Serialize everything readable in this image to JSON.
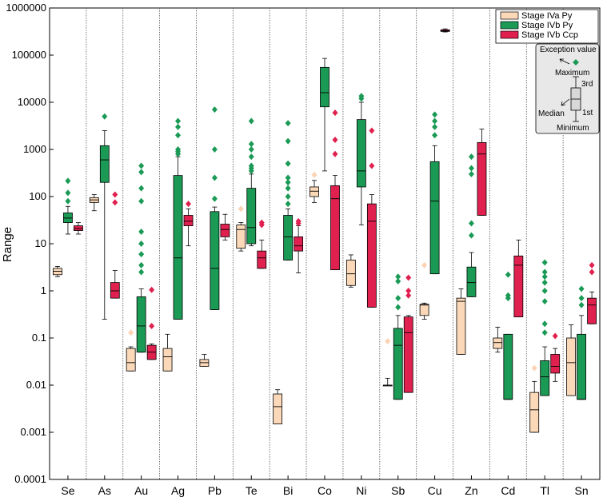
{
  "chart_data": {
    "type": "box",
    "ylabel": "Range",
    "yscale": "log",
    "ylim": [
      0.0001,
      1000000
    ],
    "y_ticks": [
      "0.0001",
      "0.001",
      "0.01",
      "0.1",
      "1",
      "10",
      "100",
      "1000",
      "10000",
      "100000",
      "1000000"
    ],
    "categories": [
      "Se",
      "As",
      "Au",
      "Ag",
      "Pb",
      "Te",
      "Bi",
      "Co",
      "Ni",
      "Sb",
      "Cu",
      "Zn",
      "Cd",
      "Tl",
      "Sn"
    ],
    "series": [
      {
        "name": "Stage IVa Py",
        "color": "#fad8b8",
        "outlier_color": "#fcd3b4",
        "boxes": [
          {
            "category": "Se",
            "min": 2.0,
            "q1": 2.2,
            "median": 2.6,
            "q3": 3.0,
            "max": 3.3,
            "outliers": []
          },
          {
            "category": "As",
            "min": 50,
            "q1": 75,
            "median": 85,
            "q3": 95,
            "max": 110,
            "outliers": []
          },
          {
            "category": "Au",
            "min": 0.02,
            "q1": 0.02,
            "median": 0.03,
            "q3": 0.06,
            "max": 0.065,
            "outliers": [
              0.13
            ]
          },
          {
            "category": "Ag",
            "min": 0.02,
            "q1": 0.02,
            "median": 0.04,
            "q3": 0.06,
            "max": 0.12,
            "outliers": []
          },
          {
            "category": "Pb",
            "min": 0.025,
            "q1": 0.025,
            "median": 0.03,
            "q3": 0.035,
            "max": 0.045,
            "outliers": []
          },
          {
            "category": "Te",
            "min": 7,
            "q1": 8,
            "median": 20,
            "q3": 25,
            "max": 28,
            "outliers": [
              55
            ]
          },
          {
            "category": "Bi",
            "min": 0.0015,
            "q1": 0.0015,
            "median": 0.0035,
            "q3": 0.0065,
            "max": 0.008,
            "outliers": []
          },
          {
            "category": "Co",
            "min": 75,
            "q1": 100,
            "median": 130,
            "q3": 160,
            "max": 220,
            "outliers": [
              290
            ]
          },
          {
            "category": "Ni",
            "min": 1.2,
            "q1": 1.3,
            "median": 2.3,
            "q3": 4.5,
            "max": 5.8,
            "outliers": []
          },
          {
            "category": "Sb",
            "min": 0.01,
            "q1": 0.01,
            "median": 0.01,
            "q3": 0.01,
            "max": 0.014,
            "outliers": [
              0.085
            ]
          },
          {
            "category": "Cu",
            "min": 0.25,
            "q1": 0.3,
            "median": 0.5,
            "q3": 0.52,
            "max": 0.55,
            "outliers": [
              3.5
            ]
          },
          {
            "category": "Zn",
            "min": 0.045,
            "q1": 0.045,
            "median": 0.6,
            "q3": 0.7,
            "max": 1.1,
            "outliers": []
          },
          {
            "category": "Cd",
            "min": 0.05,
            "q1": 0.06,
            "median": 0.08,
            "q3": 0.1,
            "max": 0.17,
            "outliers": []
          },
          {
            "category": "Tl",
            "min": 0.001,
            "q1": 0.001,
            "median": 0.003,
            "q3": 0.007,
            "max": 0.012,
            "outliers": [
              0.023
            ]
          },
          {
            "category": "Sn",
            "min": 0.006,
            "q1": 0.006,
            "median": 0.03,
            "q3": 0.1,
            "max": 0.19,
            "outliers": []
          }
        ]
      },
      {
        "name": "Stage IVb Py",
        "color": "#1a9a55",
        "outlier_color": "#1a9a55",
        "boxes": [
          {
            "category": "Se",
            "min": 16,
            "q1": 28,
            "median": 35,
            "q3": 45,
            "max": 62,
            "outliers": [
              80,
              120,
              215
            ]
          },
          {
            "category": "As",
            "min": 0.25,
            "q1": 200,
            "median": 600,
            "q3": 1200,
            "max": 2500,
            "outliers": [
              5000
            ]
          },
          {
            "category": "Au",
            "min": 0.05,
            "q1": 0.05,
            "median": 0.18,
            "q3": 0.75,
            "max": 1.1,
            "outliers": [
              2.5,
              3.5,
              6,
              10,
              18,
              80,
              150,
              330,
              450
            ]
          },
          {
            "category": "Ag",
            "min": 0.25,
            "q1": 0.25,
            "median": 5,
            "q3": 280,
            "max": 700,
            "outliers": [
              800,
              900,
              1000,
              2000,
              3000,
              4000
            ]
          },
          {
            "category": "Pb",
            "min": 0.4,
            "q1": 0.4,
            "median": 3,
            "q3": 48,
            "max": 60,
            "outliers": [
              90,
              250,
              1000,
              7000
            ]
          },
          {
            "category": "Te",
            "min": 9,
            "q1": 10,
            "median": 22,
            "q3": 150,
            "max": 300,
            "outliers": [
              350,
              400,
              450,
              700,
              1000,
              1300,
              4000
            ]
          },
          {
            "category": "Bi",
            "min": 4.5,
            "q1": 4.5,
            "median": 14,
            "q3": 40,
            "max": 55,
            "outliers": [
              70,
              100,
              150,
              200,
              250,
              500,
              1500,
              3600
            ]
          },
          {
            "category": "Co",
            "min": 350,
            "q1": 8000,
            "median": 16000,
            "q3": 55000,
            "max": 85000,
            "outliers": []
          },
          {
            "category": "Ni",
            "min": 25,
            "q1": 160,
            "median": 350,
            "q3": 4300,
            "max": 10000,
            "outliers": [
              12000,
              13500
            ]
          },
          {
            "category": "Sb",
            "min": 0.005,
            "q1": 0.005,
            "median": 0.07,
            "q3": 0.16,
            "max": 0.3,
            "outliers": [
              0.45,
              0.7,
              1.6,
              2
            ]
          },
          {
            "category": "Cu",
            "min": 2.3,
            "q1": 2.3,
            "median": 80,
            "q3": 550,
            "max": 1200,
            "outliers": [
              2000,
              3000,
              4000,
              5500
            ]
          },
          {
            "category": "Zn",
            "min": 0.75,
            "q1": 0.75,
            "median": 1.5,
            "q3": 3.2,
            "max": 6.5,
            "outliers": [
              15,
              27,
              300,
              400,
              700
            ]
          },
          {
            "category": "Cd",
            "min": 0.005,
            "q1": 0.005,
            "median": 0.005,
            "q3": 0.12,
            "max": 0.12,
            "outliers": [
              0.7,
              0.8,
              2.2
            ]
          },
          {
            "category": "Tl",
            "min": 0.006,
            "q1": 0.006,
            "median": 0.015,
            "q3": 0.033,
            "max": 0.065,
            "outliers": [
              0.13,
              0.2,
              0.6,
              1,
              1.5,
              2,
              2.5,
              4
            ]
          },
          {
            "category": "Sn",
            "min": 0.005,
            "q1": 0.005,
            "median": 0.005,
            "q3": 0.12,
            "max": 0.3,
            "outliers": [
              0.5,
              0.7,
              1.1
            ]
          }
        ]
      },
      {
        "name": "Stage IVb Ccp",
        "color": "#e0204f",
        "outlier_color": "#e0204f",
        "boxes": [
          {
            "category": "Se",
            "min": 16,
            "q1": 19,
            "median": 21,
            "q3": 24,
            "max": 28,
            "outliers": []
          },
          {
            "category": "As",
            "min": 0.7,
            "q1": 0.7,
            "median": 1.0,
            "q3": 1.5,
            "max": 2.7,
            "outliers": [
              75,
              110
            ]
          },
          {
            "category": "Au",
            "min": 0.035,
            "q1": 0.035,
            "median": 0.05,
            "q3": 0.07,
            "max": 0.075,
            "outliers": [
              0.18,
              1.05
            ]
          },
          {
            "category": "Ag",
            "min": 9,
            "q1": 24,
            "median": 30,
            "q3": 40,
            "max": 55,
            "outliers": [
              70
            ]
          },
          {
            "category": "Pb",
            "min": 12,
            "q1": 14,
            "median": 20,
            "q3": 26,
            "max": 42,
            "outliers": []
          },
          {
            "category": "Te",
            "min": 3,
            "q1": 3,
            "median": 5,
            "q3": 7,
            "max": 12,
            "outliers": [
              25,
              28
            ]
          },
          {
            "category": "Bi",
            "min": 2.4,
            "q1": 7,
            "median": 9,
            "q3": 14,
            "max": 24,
            "outliers": [
              27,
              30
            ]
          },
          {
            "category": "Co",
            "min": 2.8,
            "q1": 2.8,
            "median": 90,
            "q3": 170,
            "max": 280,
            "outliers": [
              800,
              1600,
              6000
            ]
          },
          {
            "category": "Ni",
            "min": 0.45,
            "q1": 0.45,
            "median": 30,
            "q3": 70,
            "max": 110,
            "outliers": [
              450,
              2500
            ]
          },
          {
            "category": "Sb",
            "min": 0.007,
            "q1": 0.007,
            "median": 0.13,
            "q3": 0.28,
            "max": 0.3,
            "outliers": [
              0.8,
              1,
              1.9
            ]
          },
          {
            "category": "Cu",
            "min": 310000,
            "q1": 318000,
            "median": 330000,
            "q3": 345000,
            "max": 360000,
            "outliers": []
          },
          {
            "category": "Zn",
            "min": 40,
            "q1": 40,
            "median": 800,
            "q3": 1400,
            "max": 2700,
            "outliers": []
          },
          {
            "category": "Cd",
            "min": 0.28,
            "q1": 0.28,
            "median": 3.5,
            "q3": 5.5,
            "max": 12,
            "outliers": []
          },
          {
            "category": "Tl",
            "min": 0.012,
            "q1": 0.018,
            "median": 0.025,
            "q3": 0.045,
            "max": 0.06,
            "outliers": [
              0.11
            ]
          },
          {
            "category": "Sn",
            "min": 0.2,
            "q1": 0.2,
            "median": 0.5,
            "q3": 0.7,
            "max": 0.95,
            "outliers": [
              2.5,
              3.5
            ]
          }
        ]
      }
    ],
    "legend_position": "top-right",
    "explanation_box": {
      "labels": [
        "Exception value",
        "Maximum",
        "3rd",
        "Median",
        "1st",
        "Minimum"
      ]
    }
  }
}
